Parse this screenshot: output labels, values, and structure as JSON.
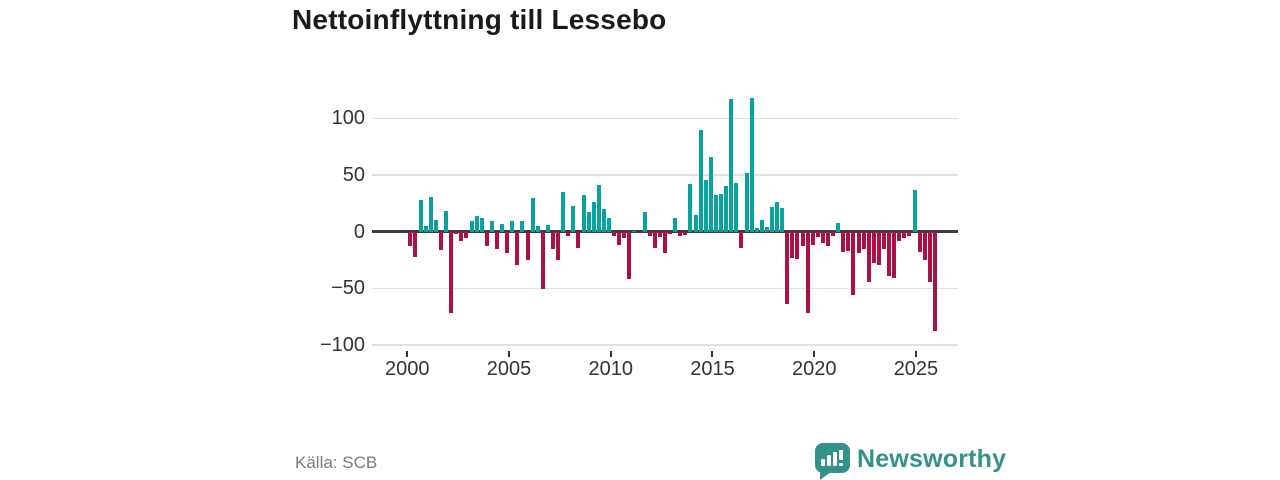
{
  "title": "Nettoinflyttning till Lessebo",
  "source": "Källa: SCB",
  "brand": {
    "name": "Newsworthy"
  },
  "colors": {
    "positive": "#0aa29f",
    "negative": "#ac1145",
    "grid": "#e2e2e2",
    "zero_axis": "#3c3c3c",
    "axis_text": "#333333",
    "title_text": "#1a1a1a",
    "source_text": "#7b7b7b",
    "brand_teal": "#35918a"
  },
  "chart_data": {
    "type": "bar",
    "title": "Nettoinflyttning till Lessebo",
    "xlabel": "",
    "ylabel": "",
    "x_unit": "quarter",
    "x_start": "2000-Q1",
    "x_end": "2025-Q4",
    "ylim": [
      -100,
      125
    ],
    "grid": true,
    "y_ticks": [
      100,
      50,
      0,
      -50,
      -100
    ],
    "y_tick_labels": [
      "100",
      "50",
      "0",
      "−50",
      "−100"
    ],
    "x_tick_years": [
      2000,
      2005,
      2010,
      2015,
      2020,
      2025
    ],
    "x_tick_labels": [
      "2000",
      "2005",
      "2010",
      "2015",
      "2020",
      "2025"
    ],
    "series": [
      {
        "name": "Nettoinflyttning",
        "values": [
          -13,
          -22,
          28,
          5,
          31,
          10,
          -16,
          18,
          -72,
          -2,
          -8,
          -6,
          9,
          14,
          12,
          -13,
          9,
          -15,
          7,
          -19,
          9,
          -29,
          9,
          -25,
          30,
          5,
          -51,
          6,
          -15,
          -25,
          35,
          -4,
          23,
          -14,
          32,
          17,
          26,
          41,
          20,
          12,
          -4,
          -12,
          -6,
          -42,
          1,
          -1,
          17,
          -4,
          -14,
          -5,
          -19,
          -2,
          12,
          -4,
          -3,
          42,
          15,
          90,
          46,
          66,
          32,
          33,
          40,
          117,
          43,
          -14,
          52,
          118,
          3,
          10,
          4,
          22,
          26,
          21,
          -64,
          -23,
          -24,
          -13,
          -72,
          -12,
          -5,
          -10,
          -13,
          -4,
          8,
          -18,
          -17,
          -56,
          -19,
          -15,
          -44,
          -28,
          -29,
          -15,
          -39,
          -41,
          -8,
          -6,
          -4,
          37,
          -18,
          -25,
          -44,
          -88
        ]
      }
    ]
  }
}
